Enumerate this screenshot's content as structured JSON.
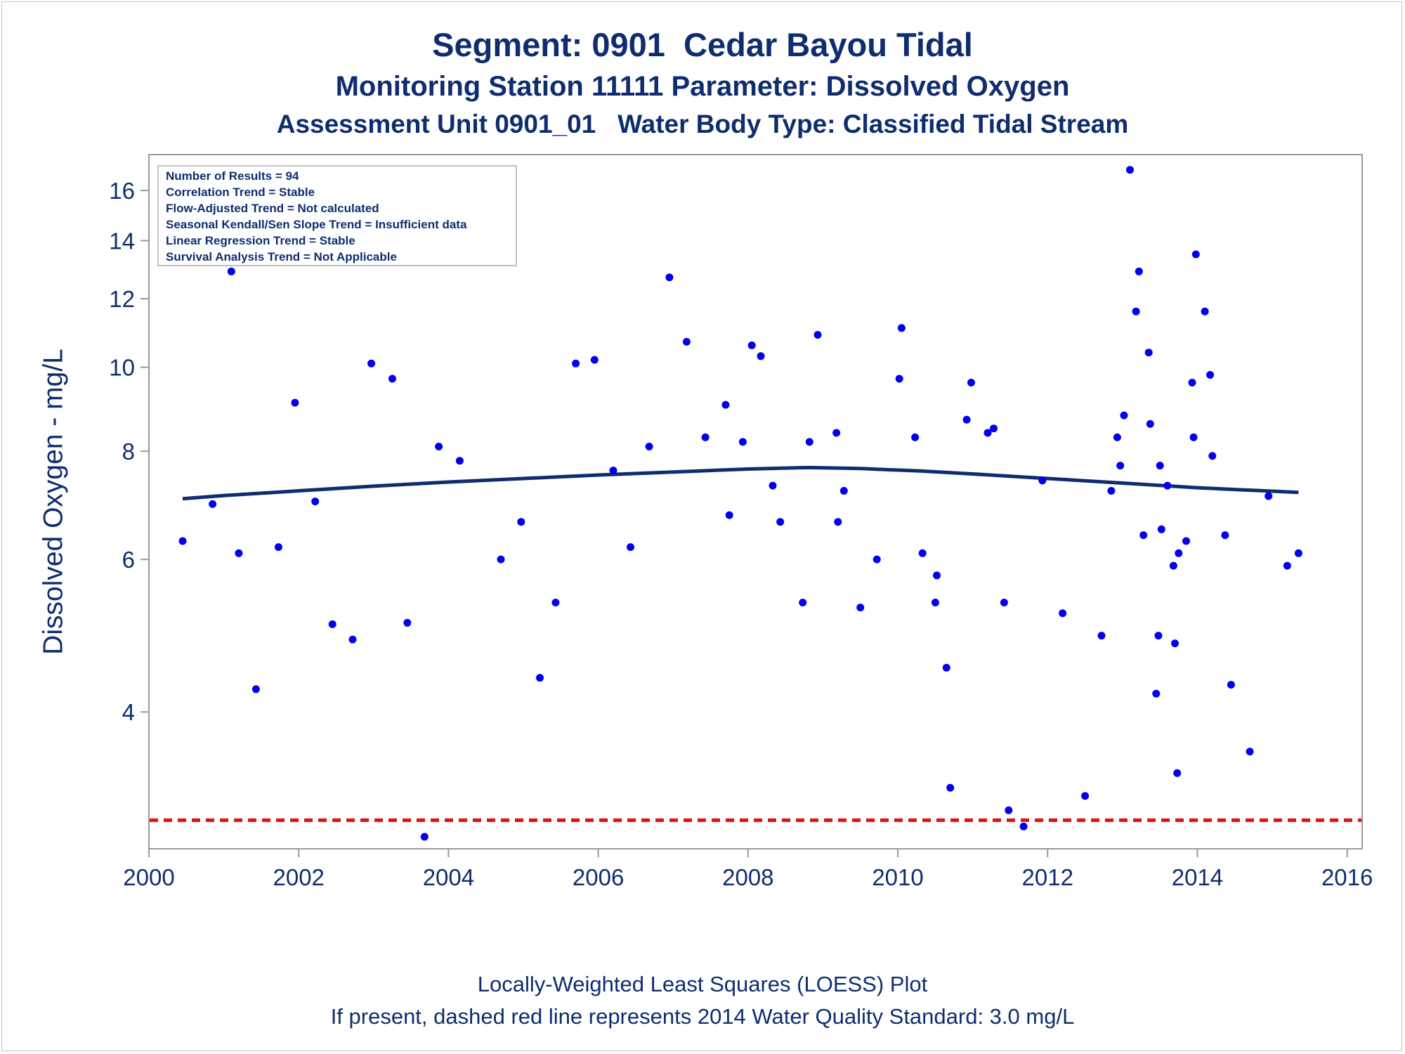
{
  "chart_data": {
    "type": "scatter",
    "title": "Segment: 0901  Cedar Bayou Tidal",
    "subtitles": [
      "Monitoring Station 11111 Parameter: Dissolved Oxygen",
      "Assessment Unit 0901_01   Water Body Type: Classified Tidal Stream"
    ],
    "xlabel": "",
    "ylabel": "Dissolved Oxygen - mg/L",
    "x_scale": "linear",
    "y_scale": "log",
    "xlim": [
      2000,
      2016.2
    ],
    "ylim": [
      2.78,
      17.6
    ],
    "x_ticks": [
      2000,
      2002,
      2004,
      2006,
      2008,
      2010,
      2012,
      2014,
      2016
    ],
    "y_ticks": [
      4,
      6,
      8,
      10,
      12,
      14,
      16
    ],
    "grid": false,
    "stats_box": [
      "Number of Results = 94",
      "Correlation Trend = Stable",
      "Flow-Adjusted Trend = Not calculated",
      "Seasonal Kendall/Sen Slope Trend = Insufficient data",
      "Linear Regression Trend = Stable",
      "Survival Analysis Trend = Not Applicable"
    ],
    "standard_line": {
      "value": 3.0,
      "style": "dashed",
      "color": "#dd1111"
    },
    "point_color": "#0000ee",
    "loess_color": "#0f2d6e",
    "points": [
      {
        "x": 2000.45,
        "y": 6.3
      },
      {
        "x": 2000.85,
        "y": 6.95
      },
      {
        "x": 2001.1,
        "y": 12.9
      },
      {
        "x": 2001.2,
        "y": 6.1
      },
      {
        "x": 2001.43,
        "y": 4.25
      },
      {
        "x": 2001.73,
        "y": 6.2
      },
      {
        "x": 2001.95,
        "y": 9.1
      },
      {
        "x": 2002.22,
        "y": 7.0
      },
      {
        "x": 2002.45,
        "y": 5.05
      },
      {
        "x": 2002.72,
        "y": 4.85
      },
      {
        "x": 2002.97,
        "y": 10.1
      },
      {
        "x": 2003.25,
        "y": 9.7
      },
      {
        "x": 2003.45,
        "y": 5.07
      },
      {
        "x": 2003.68,
        "y": 2.87
      },
      {
        "x": 2003.87,
        "y": 8.1
      },
      {
        "x": 2004.15,
        "y": 7.8
      },
      {
        "x": 2004.7,
        "y": 6.0
      },
      {
        "x": 2004.97,
        "y": 6.63
      },
      {
        "x": 2005.22,
        "y": 4.38
      },
      {
        "x": 2005.43,
        "y": 5.35
      },
      {
        "x": 2005.7,
        "y": 10.1
      },
      {
        "x": 2005.95,
        "y": 10.2
      },
      {
        "x": 2006.2,
        "y": 7.6
      },
      {
        "x": 2006.43,
        "y": 6.2
      },
      {
        "x": 2006.68,
        "y": 8.1
      },
      {
        "x": 2006.95,
        "y": 12.7
      },
      {
        "x": 2007.18,
        "y": 10.7
      },
      {
        "x": 2007.43,
        "y": 8.3
      },
      {
        "x": 2007.7,
        "y": 9.05
      },
      {
        "x": 2007.75,
        "y": 6.75
      },
      {
        "x": 2007.93,
        "y": 8.2
      },
      {
        "x": 2008.05,
        "y": 10.6
      },
      {
        "x": 2008.17,
        "y": 10.3
      },
      {
        "x": 2008.33,
        "y": 7.3
      },
      {
        "x": 2008.43,
        "y": 6.63
      },
      {
        "x": 2008.73,
        "y": 5.35
      },
      {
        "x": 2008.82,
        "y": 8.2
      },
      {
        "x": 2008.93,
        "y": 10.9
      },
      {
        "x": 2009.18,
        "y": 8.4
      },
      {
        "x": 2009.2,
        "y": 6.63
      },
      {
        "x": 2009.28,
        "y": 7.2
      },
      {
        "x": 2009.5,
        "y": 5.28
      },
      {
        "x": 2009.72,
        "y": 6.0
      },
      {
        "x": 2010.02,
        "y": 9.7
      },
      {
        "x": 2010.05,
        "y": 11.1
      },
      {
        "x": 2010.23,
        "y": 8.3
      },
      {
        "x": 2010.33,
        "y": 6.1
      },
      {
        "x": 2010.5,
        "y": 5.35
      },
      {
        "x": 2010.52,
        "y": 5.75
      },
      {
        "x": 2010.65,
        "y": 4.5
      },
      {
        "x": 2010.7,
        "y": 3.27
      },
      {
        "x": 2010.92,
        "y": 8.7
      },
      {
        "x": 2010.98,
        "y": 9.6
      },
      {
        "x": 2011.2,
        "y": 8.4
      },
      {
        "x": 2011.28,
        "y": 8.5
      },
      {
        "x": 2011.42,
        "y": 5.35
      },
      {
        "x": 2011.48,
        "y": 3.08
      },
      {
        "x": 2011.68,
        "y": 2.95
      },
      {
        "x": 2011.93,
        "y": 7.4
      },
      {
        "x": 2012.2,
        "y": 5.2
      },
      {
        "x": 2012.5,
        "y": 3.2
      },
      {
        "x": 2012.72,
        "y": 4.9
      },
      {
        "x": 2012.85,
        "y": 7.2
      },
      {
        "x": 2012.93,
        "y": 8.3
      },
      {
        "x": 2012.97,
        "y": 7.7
      },
      {
        "x": 2013.02,
        "y": 8.8
      },
      {
        "x": 2013.1,
        "y": 16.9
      },
      {
        "x": 2013.18,
        "y": 11.6
      },
      {
        "x": 2013.22,
        "y": 12.9
      },
      {
        "x": 2013.28,
        "y": 6.4
      },
      {
        "x": 2013.35,
        "y": 10.4
      },
      {
        "x": 2013.37,
        "y": 8.6
      },
      {
        "x": 2013.45,
        "y": 4.2
      },
      {
        "x": 2013.48,
        "y": 4.9
      },
      {
        "x": 2013.5,
        "y": 7.7
      },
      {
        "x": 2013.52,
        "y": 6.5
      },
      {
        "x": 2013.6,
        "y": 7.3
      },
      {
        "x": 2013.68,
        "y": 5.9
      },
      {
        "x": 2013.7,
        "y": 4.8
      },
      {
        "x": 2013.73,
        "y": 3.4
      },
      {
        "x": 2013.75,
        "y": 6.1
      },
      {
        "x": 2013.85,
        "y": 6.3
      },
      {
        "x": 2013.93,
        "y": 9.6
      },
      {
        "x": 2013.95,
        "y": 8.3
      },
      {
        "x": 2013.98,
        "y": 13.5
      },
      {
        "x": 2014.1,
        "y": 11.6
      },
      {
        "x": 2014.17,
        "y": 9.8
      },
      {
        "x": 2014.2,
        "y": 7.9
      },
      {
        "x": 2014.37,
        "y": 6.4
      },
      {
        "x": 2014.45,
        "y": 4.3
      },
      {
        "x": 2014.7,
        "y": 3.6
      },
      {
        "x": 2014.95,
        "y": 7.1
      },
      {
        "x": 2015.2,
        "y": 5.9
      },
      {
        "x": 2015.35,
        "y": 6.1
      }
    ],
    "loess": [
      {
        "x": 2000.45,
        "y": 7.05
      },
      {
        "x": 2001.0,
        "y": 7.11
      },
      {
        "x": 2002.0,
        "y": 7.2
      },
      {
        "x": 2003.0,
        "y": 7.29
      },
      {
        "x": 2004.0,
        "y": 7.37
      },
      {
        "x": 2005.0,
        "y": 7.44
      },
      {
        "x": 2006.0,
        "y": 7.51
      },
      {
        "x": 2007.0,
        "y": 7.57
      },
      {
        "x": 2008.0,
        "y": 7.63
      },
      {
        "x": 2008.8,
        "y": 7.66
      },
      {
        "x": 2009.5,
        "y": 7.64
      },
      {
        "x": 2010.3,
        "y": 7.59
      },
      {
        "x": 2011.0,
        "y": 7.53
      },
      {
        "x": 2012.0,
        "y": 7.44
      },
      {
        "x": 2013.0,
        "y": 7.35
      },
      {
        "x": 2014.0,
        "y": 7.26
      },
      {
        "x": 2015.35,
        "y": 7.17
      }
    ]
  },
  "footnotes": [
    "Locally-Weighted Least Squares (LOESS) Plot",
    "If present, dashed red line represents 2014 Water Quality Standard: 3.0 mg/L"
  ]
}
